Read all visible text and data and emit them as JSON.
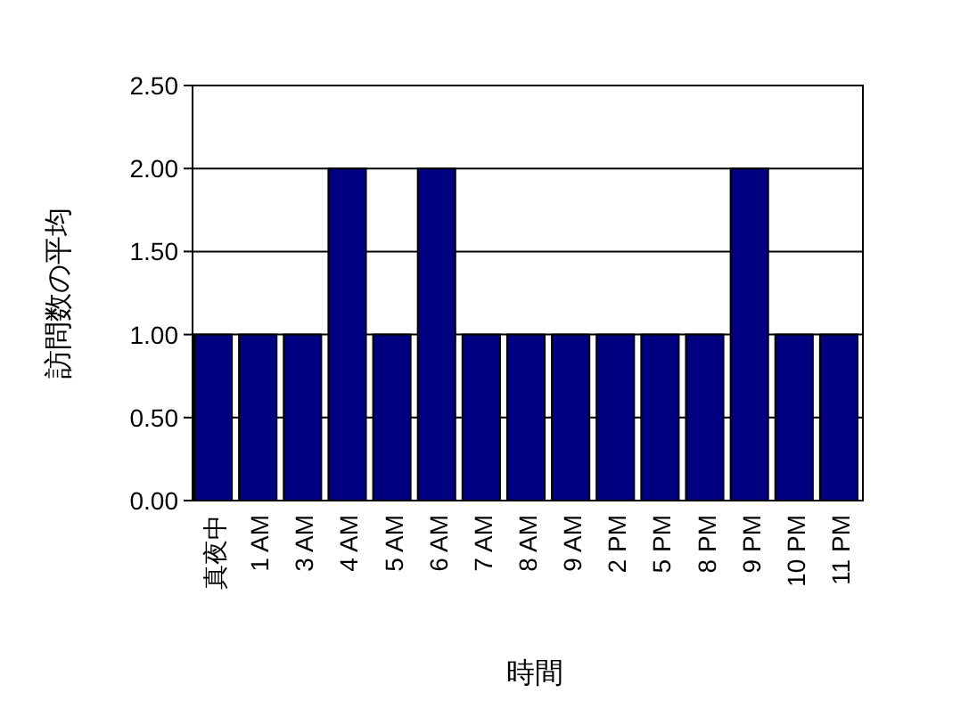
{
  "chart_data": {
    "type": "bar",
    "xlabel": "時間",
    "ylabel": "訪問数の平均",
    "categories": [
      "真夜中",
      "1 AM",
      "3 AM",
      "4 AM",
      "5 AM",
      "6 AM",
      "7 AM",
      "8 AM",
      "9 AM",
      "2 PM",
      "5 PM",
      "8 PM",
      "9 PM",
      "10 PM",
      "11 PM"
    ],
    "values": [
      1,
      1,
      1,
      2,
      1,
      2,
      1,
      1,
      1,
      1,
      1,
      1,
      2,
      1,
      1
    ],
    "color": "#000080",
    "ylim": [
      0,
      2.5
    ],
    "yticks": [
      {
        "value": 0,
        "label": "0.00"
      },
      {
        "value": 0.5,
        "label": "0.50"
      },
      {
        "value": 1,
        "label": "1.00"
      },
      {
        "value": 1.5,
        "label": "1.50"
      },
      {
        "value": 2,
        "label": "2.00"
      },
      {
        "value": 2.5,
        "label": "2.50"
      }
    ],
    "grid": "y"
  }
}
